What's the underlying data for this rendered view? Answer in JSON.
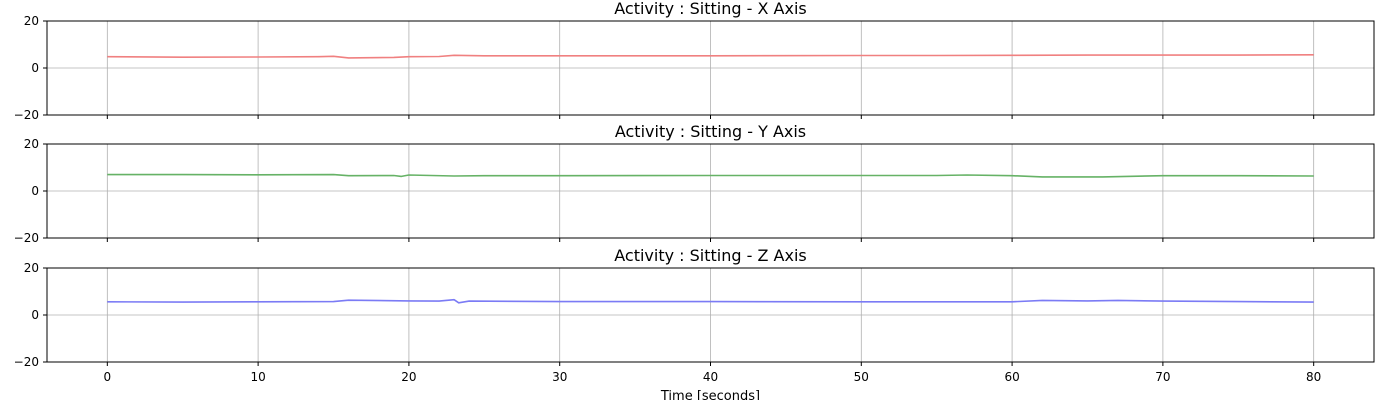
{
  "chart_data": [
    {
      "type": "line",
      "title": "Activity : Sitting - X Axis",
      "xlim": [
        -4,
        84
      ],
      "ylim": [
        -20,
        20
      ],
      "xticks": [
        0,
        10,
        20,
        30,
        40,
        50,
        60,
        70,
        80
      ],
      "yticks": [
        -20,
        0,
        20
      ],
      "grid": true,
      "series": [
        {
          "color": "#f08080",
          "x": [
            0,
            5,
            10,
            14,
            15,
            16,
            19,
            20,
            22,
            23,
            25,
            30,
            40,
            50,
            55,
            60,
            65,
            70,
            75,
            80
          ],
          "y": [
            4.8,
            4.6,
            4.7,
            4.8,
            5.0,
            4.3,
            4.5,
            4.8,
            4.9,
            5.4,
            5.2,
            5.2,
            5.2,
            5.3,
            5.3,
            5.4,
            5.5,
            5.5,
            5.5,
            5.6
          ]
        }
      ]
    },
    {
      "type": "line",
      "title": "Activity : Sitting - Y Axis",
      "xlim": [
        -4,
        84
      ],
      "ylim": [
        -20,
        20
      ],
      "xticks": [
        0,
        10,
        20,
        30,
        40,
        50,
        60,
        70,
        80
      ],
      "yticks": [
        -20,
        0,
        20
      ],
      "grid": true,
      "series": [
        {
          "color": "#66b266",
          "x": [
            0,
            5,
            10,
            15,
            16,
            19,
            19.5,
            20,
            23,
            25,
            30,
            40,
            50,
            55,
            57,
            60,
            62,
            66,
            70,
            75,
            80
          ],
          "y": [
            7.0,
            7.0,
            6.9,
            7.0,
            6.5,
            6.6,
            6.2,
            6.8,
            6.4,
            6.5,
            6.5,
            6.6,
            6.6,
            6.6,
            6.8,
            6.5,
            6.0,
            6.0,
            6.5,
            6.5,
            6.4
          ]
        }
      ]
    },
    {
      "type": "line",
      "title": "Activity : Sitting - Z Axis",
      "xlim": [
        -4,
        84
      ],
      "ylim": [
        -20,
        20
      ],
      "xticks": [
        0,
        10,
        20,
        30,
        40,
        50,
        60,
        70,
        80
      ],
      "yticks": [
        -20,
        0,
        20
      ],
      "grid": true,
      "xlabel": "Time [seconds]",
      "series": [
        {
          "color": "#7b7bf5",
          "x": [
            0,
            5,
            10,
            15,
            16,
            20,
            22,
            23,
            23.3,
            24,
            30,
            40,
            50,
            55,
            60,
            62,
            65,
            67,
            70,
            75,
            80
          ],
          "y": [
            5.6,
            5.5,
            5.6,
            5.7,
            6.3,
            6.0,
            5.9,
            6.5,
            5.2,
            5.9,
            5.7,
            5.7,
            5.6,
            5.6,
            5.6,
            6.2,
            6.0,
            6.2,
            5.9,
            5.7,
            5.5
          ]
        }
      ]
    }
  ]
}
